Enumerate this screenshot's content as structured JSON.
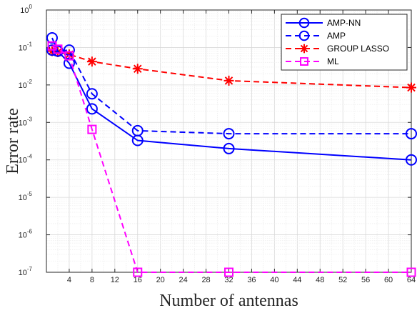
{
  "chart_data": {
    "type": "line",
    "title": "",
    "xlabel": "Number of antennas",
    "ylabel": "Error rate",
    "xscale": "linear",
    "yscale": "log",
    "xlim": [
      0,
      64
    ],
    "ylim": [
      1e-07,
      1
    ],
    "x_ticks": [
      4,
      8,
      12,
      16,
      20,
      24,
      28,
      32,
      36,
      40,
      44,
      48,
      52,
      56,
      60,
      64
    ],
    "y_ticks": [
      {
        "value": 1e-07,
        "base": "10",
        "exp": "-7"
      },
      {
        "value": 1e-06,
        "base": "10",
        "exp": "-6"
      },
      {
        "value": 1e-05,
        "base": "10",
        "exp": "-5"
      },
      {
        "value": 0.0001,
        "base": "10",
        "exp": "-4"
      },
      {
        "value": 0.001,
        "base": "10",
        "exp": "-3"
      },
      {
        "value": 0.01,
        "base": "10",
        "exp": "-2"
      },
      {
        "value": 0.1,
        "base": "10",
        "exp": "-1"
      },
      {
        "value": 1,
        "base": "10",
        "exp": "0"
      }
    ],
    "grid": true,
    "minor_grid": true,
    "legend_position": "top-right",
    "series": [
      {
        "name": "AMP-NN",
        "color": "#0000ff",
        "line": "solid",
        "marker": "circle",
        "x": [
          1,
          2,
          4,
          8,
          16,
          32,
          64
        ],
        "y": [
          0.18,
          0.08,
          0.038,
          0.0023,
          0.00033,
          0.0002,
          0.0001
        ]
      },
      {
        "name": "AMP",
        "color": "#0000ff",
        "line": "dashed",
        "marker": "circle",
        "x": [
          1,
          2,
          4,
          8,
          16,
          32,
          64
        ],
        "y": [
          0.085,
          0.08,
          0.085,
          0.0058,
          0.0006,
          0.0005,
          0.0005
        ]
      },
      {
        "name": "GROUP LASSO",
        "color": "#ff0000",
        "line": "dashed",
        "marker": "asterisk",
        "x": [
          1,
          2,
          4,
          8,
          16,
          32,
          64
        ],
        "y": [
          0.08,
          0.075,
          0.065,
          0.042,
          0.027,
          0.013,
          0.0085
        ]
      },
      {
        "name": "ML",
        "color": "#ff00ff",
        "line": "dashed",
        "marker": "square",
        "x": [
          1,
          2,
          4,
          8,
          16,
          32,
          64
        ],
        "y": [
          0.11,
          0.09,
          0.06,
          0.00065,
          1e-07,
          1e-07,
          1e-07
        ]
      }
    ]
  }
}
